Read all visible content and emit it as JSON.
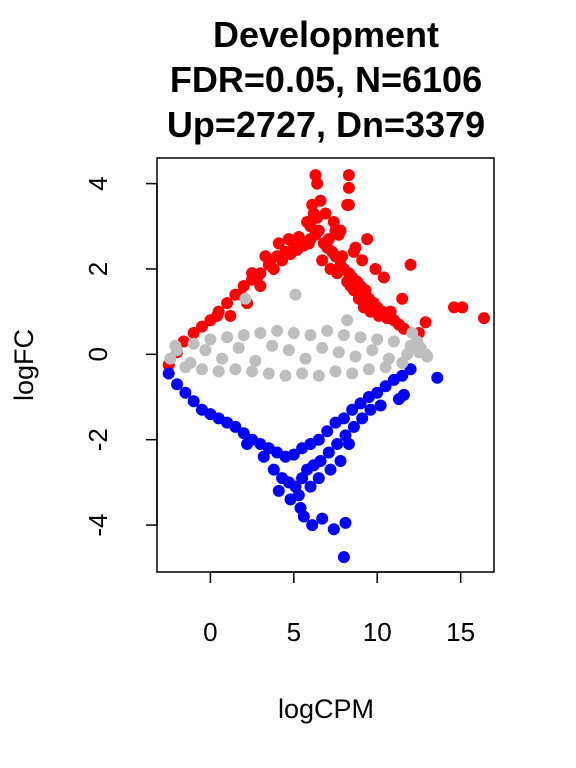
{
  "chart_data": {
    "type": "scatter",
    "title_lines": [
      "Development",
      "FDR=0.05, N=6106",
      "Up=2727, Dn=3379"
    ],
    "xlabel": "logCPM",
    "ylabel": "logFC",
    "xlim": [
      -3.2,
      17.0
    ],
    "ylim": [
      -5.1,
      4.6
    ],
    "x_ticks": [
      0,
      5,
      10,
      15
    ],
    "y_ticks": [
      -4,
      -2,
      0,
      2,
      4
    ],
    "grid": false,
    "colors": {
      "up": "#ff0000",
      "down": "#0000ff",
      "ns": "#bebebe"
    },
    "series": [
      {
        "class": "up",
        "color": "#ff0000",
        "x": [
          -2.5,
          -2.0,
          -1.6,
          -1.0,
          -0.5,
          0.0,
          0.5,
          1.0,
          1.5,
          2.0,
          2.5,
          3.0,
          3.5,
          4.0,
          4.5,
          5.0,
          5.5,
          6.0,
          6.3,
          6.5,
          6.8,
          7.0,
          7.3,
          7.5,
          7.8,
          8.0,
          8.3,
          8.5,
          8.8,
          9.0,
          9.3,
          9.5,
          9.8,
          10.0,
          10.3,
          10.5,
          11.0,
          11.3,
          11.6,
          1.2,
          2.2,
          3.0,
          3.8,
          4.3,
          4.8,
          5.2,
          5.6,
          5.9,
          6.0,
          6.4,
          6.7,
          7.2,
          7.6,
          7.9,
          8.2,
          8.4,
          8.6,
          8.9,
          9.2,
          9.6,
          10.1,
          10.6,
          11.5,
          12.0,
          12.5,
          12.9,
          14.6,
          15.1,
          16.4,
          2.5,
          3.3,
          4.1,
          4.7,
          5.3,
          5.8,
          6.2,
          6.9,
          7.4,
          7.8,
          8.3,
          8.7,
          9.4,
          9.9,
          10.4,
          0.4,
          1.8,
          2.8,
          3.6,
          6.1,
          6.3,
          6.4,
          7.5,
          8.2,
          8.3,
          8.3,
          6.6,
          7.1,
          7.7,
          8.6,
          9.1,
          10.8
        ],
        "y": [
          -0.25,
          0.05,
          0.3,
          0.5,
          0.65,
          0.8,
          1.0,
          1.2,
          1.4,
          1.6,
          1.75,
          1.9,
          2.1,
          2.3,
          2.4,
          2.5,
          2.6,
          2.7,
          2.8,
          2.9,
          2.6,
          2.5,
          2.4,
          2.3,
          2.1,
          2.0,
          1.9,
          1.8,
          1.7,
          1.6,
          1.5,
          1.3,
          1.2,
          1.1,
          1.0,
          0.9,
          0.8,
          0.7,
          0.6,
          0.9,
          1.2,
          1.6,
          2.0,
          2.2,
          2.35,
          2.45,
          2.55,
          2.6,
          3.0,
          3.2,
          2.2,
          2.0,
          1.9,
          2.3,
          1.7,
          1.6,
          1.5,
          1.3,
          1.1,
          1.0,
          0.9,
          0.85,
          1.3,
          2.1,
          0.5,
          0.75,
          1.1,
          1.1,
          0.85,
          1.9,
          2.3,
          2.6,
          2.7,
          2.75,
          3.1,
          3.3,
          3.3,
          3.1,
          2.9,
          3.5,
          2.5,
          2.7,
          2.0,
          1.8,
          0.9,
          1.4,
          1.8,
          2.2,
          3.5,
          4.2,
          4.0,
          2.9,
          3.5,
          4.2,
          3.9,
          3.6,
          2.7,
          2.8,
          2.4,
          2.2,
          1.0
        ]
      },
      {
        "class": "ns",
        "color": "#bebebe",
        "x": [
          -2.4,
          -2.0,
          -1.5,
          -1.0,
          -0.5,
          0.0,
          0.5,
          1.0,
          1.5,
          2.0,
          2.5,
          3.0,
          3.5,
          4.0,
          4.5,
          5.0,
          5.5,
          6.0,
          6.5,
          7.0,
          7.5,
          8.0,
          8.5,
          9.0,
          9.5,
          10.0,
          10.5,
          11.0,
          11.5,
          12.0,
          12.5,
          13.0,
          -2.1,
          -1.2,
          -0.3,
          0.7,
          1.7,
          2.7,
          3.7,
          4.7,
          5.7,
          6.7,
          7.7,
          8.7,
          9.7,
          10.7,
          11.8,
          12.4,
          12.9,
          2.1,
          5.1,
          8.2,
          12.1,
          12.6
        ],
        "y": [
          -0.1,
          0.1,
          -0.3,
          0.25,
          -0.35,
          0.35,
          -0.4,
          0.4,
          -0.35,
          0.45,
          -0.4,
          0.5,
          -0.45,
          0.55,
          -0.5,
          0.5,
          -0.45,
          0.45,
          -0.5,
          0.55,
          -0.4,
          0.45,
          -0.45,
          0.4,
          -0.35,
          0.35,
          -0.3,
          0.3,
          -0.2,
          0.2,
          0.05,
          -0.05,
          0.2,
          -0.2,
          0.1,
          -0.1,
          0.15,
          -0.15,
          0.2,
          0.1,
          -0.1,
          0.15,
          0.05,
          -0.05,
          0.1,
          -0.1,
          0.0,
          0.3,
          0.0,
          1.3,
          1.4,
          0.8,
          0.5,
          0.15
        ]
      },
      {
        "class": "down",
        "color": "#0000ff",
        "x": [
          -2.5,
          -2.0,
          -1.5,
          -1.0,
          -0.5,
          0.0,
          0.5,
          1.0,
          1.5,
          2.0,
          2.5,
          3.0,
          3.5,
          4.0,
          4.5,
          5.0,
          5.5,
          6.0,
          6.5,
          7.0,
          7.5,
          8.0,
          8.5,
          9.0,
          9.5,
          10.0,
          10.5,
          11.0,
          11.5,
          12.0,
          2.2,
          3.2,
          3.8,
          4.3,
          4.7,
          5.1,
          5.5,
          5.8,
          6.2,
          6.6,
          7.1,
          7.6,
          8.1,
          8.6,
          9.1,
          9.6,
          10.2,
          11.3,
          11.6,
          13.6,
          4.1,
          4.8,
          5.3,
          6.0,
          6.5,
          7.2,
          7.8,
          8.3,
          5.4,
          5.6,
          6.1,
          6.7,
          7.4,
          8.1,
          8.0
        ],
        "y": [
          -0.45,
          -0.7,
          -0.9,
          -1.1,
          -1.3,
          -1.4,
          -1.5,
          -1.6,
          -1.7,
          -1.85,
          -2.0,
          -2.1,
          -2.2,
          -2.3,
          -2.4,
          -2.35,
          -2.2,
          -2.1,
          -2.0,
          -1.8,
          -1.6,
          -1.5,
          -1.3,
          -1.15,
          -1.0,
          -0.9,
          -0.75,
          -0.6,
          -0.5,
          -0.35,
          -2.1,
          -2.4,
          -2.7,
          -2.9,
          -3.0,
          -3.1,
          -2.9,
          -2.7,
          -2.6,
          -2.5,
          -2.3,
          -2.1,
          -1.9,
          -1.7,
          -1.5,
          -1.3,
          -1.2,
          -1.05,
          -0.95,
          -0.55,
          -3.2,
          -3.4,
          -3.3,
          -3.1,
          -2.9,
          -2.7,
          -2.5,
          -2.1,
          -3.6,
          -3.8,
          -4.0,
          -3.85,
          -4.1,
          -3.95,
          -4.75
        ]
      }
    ]
  }
}
